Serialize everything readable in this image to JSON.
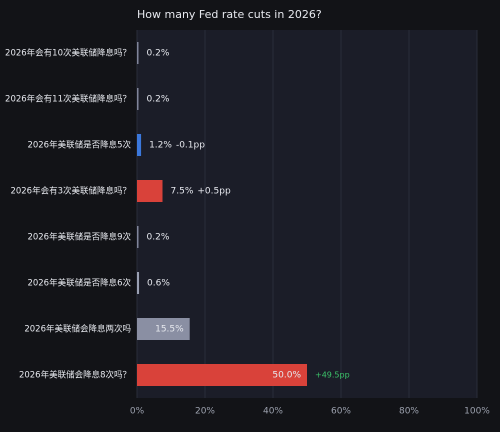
{
  "chart_data": {
    "type": "hbar",
    "title": "How many Fed rate cuts in 2026?",
    "categories": [
      "2026年会有10次美联储降息吗？",
      "2026年会有11次美联储降息吗？",
      "2026年美联储是否降息5次",
      "2026年会有3次美联储降息吗？",
      "2026年美联储是否降息9次",
      "2026年美联储是否降息6次",
      "2026年美联储会降息两次吗",
      "2026年美联储会降息8次吗？"
    ],
    "values": [
      0.2,
      0.2,
      1.2,
      7.5,
      0.2,
      0.6,
      15.5,
      50.0
    ],
    "value_labels": [
      "0.2%",
      "0.2%",
      "1.2%",
      "7.5%",
      "0.2%",
      "0.6%",
      "15.5%",
      "50.0%"
    ],
    "changes": [
      null,
      null,
      "-0.1pp",
      "+0.5pp",
      null,
      null,
      null,
      "+49.5pp"
    ],
    "change_colors": [
      null,
      null,
      "#e6e8ee",
      "#e6e8ee",
      null,
      null,
      null,
      "#3cc46a"
    ],
    "colors": [
      "#80859a",
      "#80859a",
      "#3b78dc",
      "#d9423a",
      "#80859a",
      "#9aa0b2",
      "#8a8fa3",
      "#d9423a"
    ],
    "xlim": [
      0,
      100
    ],
    "xticks": [
      {
        "value": 0,
        "label": "0%"
      },
      {
        "value": 20,
        "label": "20%"
      },
      {
        "value": 40,
        "label": "40%"
      },
      {
        "value": 60,
        "label": "60%"
      },
      {
        "value": 80,
        "label": "80%"
      },
      {
        "value": 100,
        "label": "100%"
      }
    ],
    "grid": true
  }
}
